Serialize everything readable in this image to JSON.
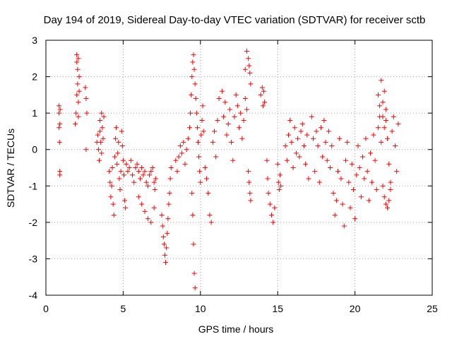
{
  "chart_data": {
    "type": "scatter",
    "title": "Day 194 of 2019, Sidereal Day-to-day VTEC variation (SDTVAR) for receiver sctb",
    "xlabel": "GPS time / hours",
    "ylabel": "SDTVAR / TECUs",
    "xlim": [
      0,
      25
    ],
    "ylim": [
      -4,
      3
    ],
    "x_ticks": [
      0,
      5,
      10,
      15,
      20,
      25
    ],
    "y_ticks": [
      -4,
      -3,
      -2,
      -1,
      0,
      1,
      2,
      3
    ],
    "x_tick_labels": [
      "0",
      "5",
      "10",
      "15",
      "20",
      "25"
    ],
    "y_tick_labels": [
      "-4",
      "-3",
      "-2",
      "-1",
      "0",
      "1",
      "2",
      "3"
    ],
    "grid": true,
    "marker": "+",
    "color": "#ff0000",
    "series": [
      {
        "name": "SDTVAR",
        "x": [
          0.85,
          0.85,
          0.85,
          0.88,
          0.9,
          0.9,
          0.9,
          0.92,
          1.9,
          1.95,
          2.0,
          2.0,
          2.0,
          2.05,
          2.05,
          2.1,
          2.1,
          2.1,
          2.15,
          2.15,
          2.55,
          2.6,
          2.6,
          2.65,
          3.3,
          3.35,
          3.4,
          3.45,
          3.5,
          3.5,
          3.55,
          3.6,
          3.6,
          3.65,
          3.7,
          3.75,
          4.1,
          4.15,
          4.2,
          4.25,
          4.3,
          4.35,
          4.4,
          4.45,
          4.5,
          4.55,
          4.6,
          4.65,
          4.7,
          4.75,
          4.8,
          4.85,
          4.9,
          4.95,
          5.0,
          5.05,
          5.1,
          5.15,
          5.2,
          5.3,
          5.4,
          5.5,
          5.6,
          5.7,
          5.8,
          5.9,
          6.0,
          6.1,
          6.2,
          6.3,
          6.4,
          6.5,
          6.6,
          6.7,
          6.8,
          6.9,
          7.0,
          7.05,
          7.1,
          6.0,
          6.2,
          6.4,
          6.6,
          6.8,
          7.0,
          7.5,
          7.55,
          7.6,
          7.65,
          7.7,
          7.75,
          7.8,
          7.85,
          7.9,
          7.95,
          8.0,
          8.05,
          8.1,
          8.4,
          8.5,
          8.6,
          8.7,
          8.8,
          8.9,
          9.0,
          9.1,
          9.2,
          9.3,
          9.35,
          9.4,
          9.45,
          9.5,
          9.55,
          9.6,
          9.65,
          9.7,
          9.75,
          9.8,
          9.85,
          9.9,
          9.95,
          10.0,
          10.05,
          10.1,
          10.15,
          10.2,
          9.45,
          9.5,
          9.55,
          9.6,
          9.65,
          10.3,
          10.4,
          10.5,
          10.6,
          10.7,
          10.8,
          10.9,
          11.0,
          11.1,
          11.2,
          11.4,
          11.5,
          11.6,
          11.7,
          11.8,
          11.9,
          12.0,
          12.1,
          12.2,
          12.3,
          12.4,
          12.5,
          12.6,
          12.7,
          12.8,
          12.9,
          13.0,
          12.9,
          13.0,
          13.1,
          13.15,
          13.2,
          13.25,
          13.1,
          13.15,
          13.2,
          13.25,
          13.9,
          14.0,
          14.05,
          14.1,
          14.15,
          14.3,
          14.35,
          14.4,
          14.5,
          14.6,
          14.7,
          14.8,
          15.0,
          15.05,
          15.1,
          15.15,
          15.2,
          15.5,
          15.6,
          15.7,
          15.8,
          15.9,
          16.0,
          16.1,
          16.2,
          16.3,
          16.4,
          16.5,
          16.6,
          16.7,
          16.8,
          16.9,
          17.0,
          17.2,
          17.3,
          17.4,
          17.5,
          17.6,
          17.7,
          17.8,
          17.9,
          18.0,
          18.1,
          18.2,
          18.3,
          18.4,
          18.5,
          18.6,
          18.7,
          18.8,
          18.9,
          19.0,
          19.1,
          19.2,
          19.3,
          19.4,
          19.5,
          19.6,
          19.7,
          19.8,
          19.9,
          20.0,
          20.1,
          20.2,
          20.3,
          20.4,
          20.5,
          20.6,
          20.7,
          20.8,
          20.9,
          21.0,
          21.1,
          21.2,
          21.3,
          21.4,
          21.5,
          21.6,
          21.7,
          21.8,
          21.9,
          22.0,
          22.1,
          22.2,
          22.3,
          22.4,
          22.5,
          22.6,
          22.7,
          22.8,
          21.8,
          21.9,
          22.0,
          22.1,
          22.2,
          22.3,
          21.5,
          21.6,
          21.7,
          21.8,
          21.9,
          22.0
        ],
        "y": [
          1.2,
          1.0,
          0.6,
          0.2,
          -0.6,
          -0.7,
          0.7,
          1.1,
          0.7,
          1.0,
          1.5,
          2.4,
          2.6,
          2.2,
          1.8,
          1.3,
          0.9,
          2.5,
          2.0,
          1.6,
          1.7,
          1.4,
          0.0,
          1.0,
          0.2,
          0.4,
          0.0,
          -0.3,
          0.8,
          0.5,
          0.2,
          -0.1,
          1.0,
          0.6,
          0.3,
          0.9,
          -0.6,
          -0.9,
          -1.3,
          -1.0,
          -0.5,
          -1.5,
          -1.8,
          -0.2,
          0.3,
          0.6,
          -0.4,
          -0.1,
          0.2,
          -0.8,
          -1.1,
          -0.6,
          0.5,
          0.1,
          -0.3,
          -0.7,
          -1.4,
          -1.6,
          -0.4,
          -0.6,
          -0.5,
          -0.3,
          -0.7,
          -0.9,
          -0.5,
          -0.4,
          -0.6,
          -0.8,
          -0.5,
          -0.7,
          -0.6,
          -0.9,
          -1.0,
          -0.7,
          -0.6,
          -0.5,
          -0.9,
          -1.1,
          -0.8,
          -1.3,
          -1.5,
          -1.7,
          -1.9,
          -2.0,
          -1.6,
          -1.8,
          -2.1,
          -2.4,
          -2.6,
          -2.9,
          -3.1,
          -2.7,
          -2.3,
          -1.9,
          -1.5,
          -1.2,
          -0.8,
          -0.5,
          -0.3,
          -0.6,
          -0.2,
          0.1,
          -0.1,
          0.2,
          -0.4,
          0.0,
          0.3,
          0.6,
          1.0,
          1.5,
          2.0,
          2.4,
          2.6,
          2.2,
          1.8,
          1.4,
          1.0,
          0.6,
          0.2,
          -0.2,
          -0.6,
          -0.9,
          0.4,
          0.8,
          1.2,
          0.5,
          -1.2,
          -1.8,
          -2.6,
          -3.4,
          -3.8,
          -0.5,
          -0.8,
          -1.2,
          -1.8,
          -2.0,
          0.2,
          0.5,
          -0.2,
          0.8,
          1.4,
          1.6,
          0.9,
          1.3,
          0.4,
          0.7,
          1.1,
          0.2,
          -0.3,
          0.9,
          1.5,
          1.2,
          0.6,
          1.0,
          0.3,
          0.8,
          1.4,
          1.1,
          2.2,
          2.7,
          2.5,
          2.3,
          2.1,
          1.8,
          -0.6,
          -0.9,
          -1.2,
          -1.4,
          1.5,
          1.7,
          1.2,
          1.6,
          1.3,
          -0.3,
          -0.8,
          -1.2,
          -1.5,
          -1.8,
          -2.0,
          -1.6,
          -0.4,
          -0.9,
          -1.1,
          -0.7,
          -1.0,
          0.1,
          -0.3,
          0.4,
          0.8,
          0.2,
          -0.5,
          0.6,
          -0.1,
          0.3,
          -0.2,
          0.5,
          0.7,
          0.1,
          -0.4,
          0.4,
          -0.8,
          0.9,
          0.3,
          -0.6,
          0.5,
          0.1,
          -0.9,
          0.6,
          -0.2,
          0.8,
          0.2,
          -0.3,
          0.5,
          -0.5,
          0.1,
          -1.2,
          -1.8,
          -1.4,
          -0.6,
          0.3,
          -0.8,
          -1.5,
          -2.1,
          -0.3,
          0.2,
          -0.9,
          -1.6,
          -0.4,
          -1.1,
          -1.9,
          -0.7,
          0.1,
          -0.5,
          -1.3,
          -0.2,
          -0.8,
          0.3,
          -0.6,
          -1.4,
          -0.1,
          -0.9,
          0.4,
          -0.3,
          -1.1,
          0.6,
          0.9,
          0.2,
          1.3,
          1.6,
          0.8,
          0.3,
          -0.4,
          -0.9,
          0.5,
          0.9,
          0.1,
          -0.6,
          0.7,
          -1.0,
          -1.3,
          -1.5,
          -1.6,
          -1.4,
          -1.1,
          1.5,
          1.2,
          1.9,
          0.9,
          0.6,
          1.1
        ]
      }
    ]
  }
}
